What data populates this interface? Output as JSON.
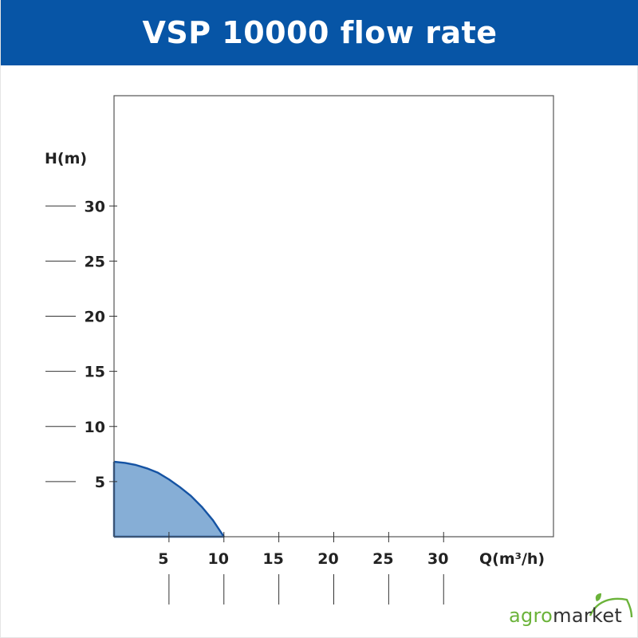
{
  "header": {
    "title": "VSP 10000 flow rate"
  },
  "chart_data": {
    "type": "area",
    "title": "VSP 10000 flow rate",
    "xlabel": "Q(m³/h)",
    "ylabel": "H(m)",
    "xlim": [
      0,
      40
    ],
    "ylim": [
      0,
      40
    ],
    "x_ticks": [
      5,
      10,
      15,
      20,
      25,
      30
    ],
    "x_tick_labels": [
      "5",
      "10",
      "15",
      "20",
      "25",
      "30"
    ],
    "y_ticks": [
      5,
      10,
      15,
      20,
      25,
      30
    ],
    "y_tick_labels": [
      "5",
      "10",
      "15",
      "20",
      "25",
      "30"
    ],
    "grid": false,
    "series": [
      {
        "x": [
          0,
          1,
          2,
          3,
          4,
          5,
          6,
          7,
          8,
          9,
          10
        ],
        "y": [
          6.8,
          6.7,
          6.5,
          6.2,
          5.8,
          5.2,
          4.5,
          3.7,
          2.7,
          1.5,
          0
        ],
        "fill_color": "#86aed6",
        "line_color": "#1553a3"
      }
    ]
  },
  "brand": {
    "logo_agro": "agro",
    "logo_market": "market",
    "banner_color": "#0755a6",
    "accent_green": "#6bb33a"
  }
}
